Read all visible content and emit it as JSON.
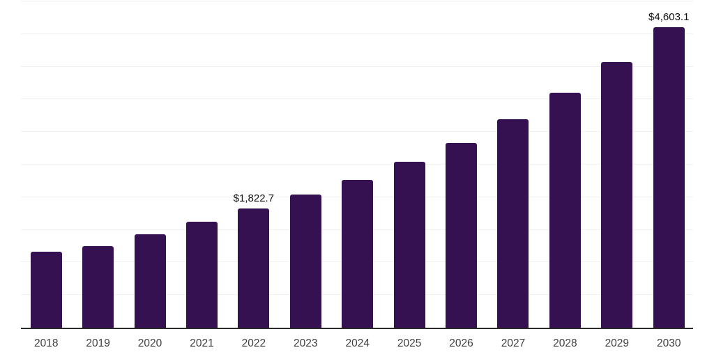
{
  "chart_data": {
    "type": "bar",
    "title": "",
    "xlabel": "",
    "ylabel": "",
    "categories": [
      "2018",
      "2019",
      "2020",
      "2021",
      "2022",
      "2023",
      "2024",
      "2025",
      "2026",
      "2027",
      "2028",
      "2029",
      "2030"
    ],
    "values": [
      1170,
      1255,
      1427,
      1620,
      1822.7,
      2040,
      2265,
      2540,
      2830,
      3190,
      3600,
      4070,
      4603.1
    ],
    "data_labels": [
      "",
      "",
      "",
      "",
      "$1,822.7",
      "",
      "",
      "",
      "",
      "",
      "",
      "",
      "$4,603.1"
    ],
    "ylim": [
      0,
      5000
    ],
    "gridline_step": 500,
    "grid": true,
    "legend_position": "none",
    "y_tick_labels_visible": false,
    "bar_color": "#361151",
    "axis_line_color": "#2b2b2b",
    "gridline_color": "#f1f1f1",
    "label_color": "#3f3f3f",
    "data_label_color": "#111111"
  }
}
